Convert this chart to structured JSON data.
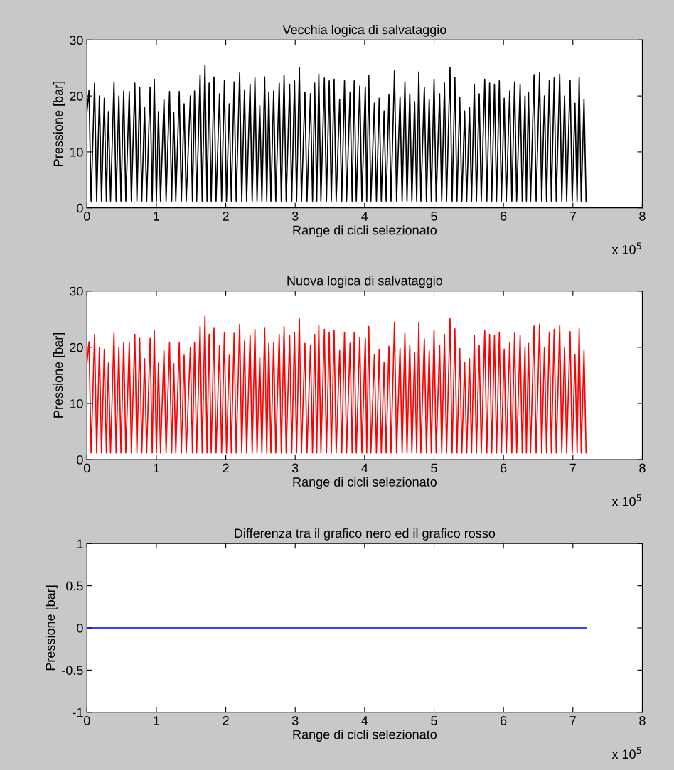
{
  "chart_data": [
    {
      "type": "line",
      "title": "Vecchia logica di salvataggio",
      "xlabel": "Range di cicli selezionato",
      "ylabel": "Pressione [bar]",
      "xlim": [
        0,
        8
      ],
      "xticks": [
        0,
        1,
        2,
        3,
        4,
        5,
        6,
        7,
        8
      ],
      "ylim": [
        0,
        30
      ],
      "yticks": [
        0,
        10,
        20,
        30
      ],
      "annotations": [
        "x 10$^{5}$"
      ],
      "line_style": "solid",
      "marker": "none",
      "series": [
        {
          "color": "#000000",
          "x": [
            0,
            0.03,
            0.06,
            0.11,
            0.14,
            0.18,
            0.21,
            0.25,
            0.28,
            0.31,
            0.34,
            0.39,
            0.42,
            0.46,
            0.49,
            0.53,
            0.56,
            0.61,
            0.64,
            0.69,
            0.72,
            0.76,
            0.79,
            0.83,
            0.86,
            0.91,
            0.94,
            0.97,
            1.0,
            1.03,
            1.06,
            1.11,
            1.14,
            1.19,
            1.22,
            1.25,
            1.28,
            1.33,
            1.36,
            1.4,
            1.43,
            1.49,
            1.52,
            1.55,
            1.58,
            1.63,
            1.66,
            1.7,
            1.73,
            1.76,
            1.79,
            1.83,
            1.86,
            1.91,
            1.94,
            1.98,
            2.01,
            2.05,
            2.08,
            2.12,
            2.15,
            2.2,
            2.23,
            2.27,
            2.3,
            2.35,
            2.38,
            2.42,
            2.45,
            2.49,
            2.52,
            2.56,
            2.59,
            2.62,
            2.65,
            2.69,
            2.72,
            2.77,
            2.8,
            2.84,
            2.87,
            2.92,
            2.95,
            2.99,
            3.02,
            3.06,
            3.09,
            3.14,
            3.17,
            3.22,
            3.25,
            3.28,
            3.31,
            3.34,
            3.37,
            3.42,
            3.45,
            3.49,
            3.52,
            3.56,
            3.59,
            3.64,
            3.67,
            3.71,
            3.74,
            3.79,
            3.82,
            3.85,
            3.88,
            3.93,
            3.96,
            4.01,
            4.03,
            4.06,
            4.09,
            4.14,
            4.17,
            4.21,
            4.24,
            4.28,
            4.31,
            4.35,
            4.38,
            4.43,
            4.46,
            4.51,
            4.54,
            4.58,
            4.61,
            4.65,
            4.68,
            4.72,
            4.75,
            4.78,
            4.81,
            4.86,
            4.89,
            4.93,
            4.96,
            5.0,
            5.03,
            5.08,
            5.11,
            5.15,
            5.18,
            5.23,
            5.26,
            5.3,
            5.33,
            5.37,
            5.4,
            5.44,
            5.47,
            5.51,
            5.54,
            5.58,
            5.61,
            5.65,
            5.68,
            5.73,
            5.76,
            5.8,
            5.83,
            5.87,
            5.9,
            5.94,
            5.97,
            6.01,
            6.04,
            6.09,
            6.12,
            6.16,
            6.19,
            6.24,
            6.27,
            6.31,
            6.33,
            6.36,
            6.39,
            6.44,
            6.47,
            6.52,
            6.55,
            6.59,
            6.62,
            6.66,
            6.69,
            6.73,
            6.76,
            6.81,
            6.84,
            6.88,
            6.91,
            6.96,
            6.99,
            7.03,
            7.06,
            7.09,
            7.12,
            7.16,
            7.19
          ],
          "values": [
            17.2,
            21.0,
            1.2,
            22.3,
            1.2,
            20.0,
            1.2,
            19.6,
            1.2,
            17.2,
            1.2,
            22.5,
            1.2,
            20.0,
            1.2,
            20.9,
            1.2,
            20.8,
            1.2,
            22.3,
            1.2,
            21.6,
            1.2,
            18.0,
            1.2,
            21.6,
            1.2,
            23.0,
            1.2,
            17.2,
            1.2,
            19.4,
            1.2,
            20.8,
            1.2,
            17.1,
            1.2,
            20.8,
            1.2,
            18.6,
            1.2,
            20.0,
            1.2,
            20.9,
            1.2,
            23.7,
            1.2,
            25.5,
            1.2,
            22.3,
            1.2,
            23.4,
            1.2,
            20.4,
            1.2,
            22.7,
            1.2,
            18.6,
            1.2,
            22.5,
            1.2,
            24.1,
            1.2,
            21.1,
            1.2,
            22.1,
            1.2,
            23.2,
            1.2,
            18.3,
            1.2,
            23.4,
            1.2,
            20.7,
            1.2,
            20.9,
            1.2,
            22.3,
            1.2,
            23.7,
            1.2,
            22.1,
            1.2,
            22.7,
            1.2,
            25.1,
            1.2,
            20.7,
            1.2,
            20.4,
            1.2,
            22.3,
            1.2,
            23.9,
            1.2,
            23.2,
            1.2,
            22.7,
            1.2,
            23.0,
            1.2,
            19.4,
            1.2,
            22.7,
            1.2,
            20.7,
            1.2,
            22.7,
            1.2,
            21.8,
            1.2,
            21.6,
            1.2,
            23.7,
            1.2,
            18.7,
            1.2,
            19.6,
            1.2,
            17.3,
            1.2,
            20.2,
            1.2,
            24.5,
            1.2,
            19.8,
            1.2,
            22.5,
            1.2,
            20.4,
            1.2,
            19.0,
            1.2,
            24.3,
            1.2,
            21.5,
            1.2,
            19.4,
            1.2,
            23.0,
            1.2,
            20.4,
            1.2,
            22.3,
            1.2,
            25.1,
            1.2,
            23.3,
            1.2,
            19.8,
            1.2,
            17.3,
            1.2,
            18.0,
            1.2,
            22.1,
            1.2,
            20.4,
            1.2,
            23.0,
            1.2,
            22.3,
            1.2,
            22.1,
            1.2,
            22.7,
            1.2,
            19.6,
            1.2,
            20.9,
            1.2,
            22.5,
            1.2,
            22.1,
            1.2,
            20.0,
            1.2,
            20.7,
            1.2,
            23.8,
            1.2,
            24.1,
            1.2,
            20.0,
            1.2,
            22.7,
            1.2,
            23.2,
            1.2,
            23.9,
            1.2,
            20.0,
            1.2,
            22.8,
            1.2,
            18.7,
            1.2,
            23.3,
            1.2,
            19.4,
            1.2
          ]
        }
      ]
    },
    {
      "type": "line",
      "title": "Nuova logica di salvataggio",
      "xlabel": "Range di cicli selezionato",
      "ylabel": "Pressione [bar]",
      "xlim": [
        0,
        8
      ],
      "xticks": [
        0,
        1,
        2,
        3,
        4,
        5,
        6,
        7,
        8
      ],
      "ylim": [
        0,
        30
      ],
      "yticks": [
        0,
        10,
        20,
        30
      ],
      "annotations": [
        "x 10$^{5}$"
      ],
      "line_style": "solid",
      "marker": "none",
      "series": [
        {
          "color": "#ff0000",
          "x": [
            0,
            0.03,
            0.06,
            0.11,
            0.14,
            0.18,
            0.21,
            0.25,
            0.28,
            0.31,
            0.34,
            0.39,
            0.42,
            0.46,
            0.49,
            0.53,
            0.56,
            0.61,
            0.64,
            0.69,
            0.72,
            0.76,
            0.79,
            0.83,
            0.86,
            0.91,
            0.94,
            0.97,
            1.0,
            1.03,
            1.06,
            1.11,
            1.14,
            1.19,
            1.22,
            1.25,
            1.28,
            1.33,
            1.36,
            1.4,
            1.43,
            1.49,
            1.52,
            1.55,
            1.58,
            1.63,
            1.66,
            1.7,
            1.73,
            1.76,
            1.79,
            1.83,
            1.86,
            1.91,
            1.94,
            1.98,
            2.01,
            2.05,
            2.08,
            2.12,
            2.15,
            2.2,
            2.23,
            2.27,
            2.3,
            2.35,
            2.38,
            2.42,
            2.45,
            2.49,
            2.52,
            2.56,
            2.59,
            2.62,
            2.65,
            2.69,
            2.72,
            2.77,
            2.8,
            2.84,
            2.87,
            2.92,
            2.95,
            2.99,
            3.02,
            3.06,
            3.09,
            3.14,
            3.17,
            3.22,
            3.25,
            3.28,
            3.31,
            3.34,
            3.37,
            3.42,
            3.45,
            3.49,
            3.52,
            3.56,
            3.59,
            3.64,
            3.67,
            3.71,
            3.74,
            3.79,
            3.82,
            3.85,
            3.88,
            3.93,
            3.96,
            4.01,
            4.03,
            4.06,
            4.09,
            4.14,
            4.17,
            4.21,
            4.24,
            4.28,
            4.31,
            4.35,
            4.38,
            4.43,
            4.46,
            4.51,
            4.54,
            4.58,
            4.61,
            4.65,
            4.68,
            4.72,
            4.75,
            4.78,
            4.81,
            4.86,
            4.89,
            4.93,
            4.96,
            5.0,
            5.03,
            5.08,
            5.11,
            5.15,
            5.18,
            5.23,
            5.26,
            5.3,
            5.33,
            5.37,
            5.4,
            5.44,
            5.47,
            5.51,
            5.54,
            5.58,
            5.61,
            5.65,
            5.68,
            5.73,
            5.76,
            5.8,
            5.83,
            5.87,
            5.9,
            5.94,
            5.97,
            6.01,
            6.04,
            6.09,
            6.12,
            6.16,
            6.19,
            6.24,
            6.27,
            6.31,
            6.33,
            6.36,
            6.39,
            6.44,
            6.47,
            6.52,
            6.55,
            6.59,
            6.62,
            6.66,
            6.69,
            6.73,
            6.76,
            6.81,
            6.84,
            6.88,
            6.91,
            6.96,
            6.99,
            7.03,
            7.06,
            7.09,
            7.12,
            7.16,
            7.19
          ],
          "values": [
            17.2,
            21.0,
            1.2,
            22.3,
            1.2,
            20.0,
            1.2,
            19.6,
            1.2,
            17.2,
            1.2,
            22.5,
            1.2,
            20.0,
            1.2,
            20.9,
            1.2,
            20.8,
            1.2,
            22.3,
            1.2,
            21.6,
            1.2,
            18.0,
            1.2,
            21.6,
            1.2,
            23.0,
            1.2,
            17.2,
            1.2,
            19.4,
            1.2,
            20.8,
            1.2,
            17.1,
            1.2,
            20.8,
            1.2,
            18.6,
            1.2,
            20.0,
            1.2,
            20.9,
            1.2,
            23.7,
            1.2,
            25.5,
            1.2,
            22.3,
            1.2,
            23.4,
            1.2,
            20.4,
            1.2,
            22.7,
            1.2,
            18.6,
            1.2,
            22.5,
            1.2,
            24.1,
            1.2,
            21.1,
            1.2,
            22.1,
            1.2,
            23.2,
            1.2,
            18.3,
            1.2,
            23.4,
            1.2,
            20.7,
            1.2,
            20.9,
            1.2,
            22.3,
            1.2,
            23.7,
            1.2,
            22.1,
            1.2,
            22.7,
            1.2,
            25.1,
            1.2,
            20.7,
            1.2,
            20.4,
            1.2,
            22.3,
            1.2,
            23.9,
            1.2,
            23.2,
            1.2,
            22.7,
            1.2,
            23.0,
            1.2,
            19.4,
            1.2,
            22.7,
            1.2,
            20.7,
            1.2,
            22.7,
            1.2,
            21.8,
            1.2,
            21.6,
            1.2,
            23.7,
            1.2,
            18.7,
            1.2,
            19.6,
            1.2,
            17.3,
            1.2,
            20.2,
            1.2,
            24.5,
            1.2,
            19.8,
            1.2,
            22.5,
            1.2,
            20.4,
            1.2,
            19.0,
            1.2,
            24.3,
            1.2,
            21.5,
            1.2,
            19.4,
            1.2,
            23.0,
            1.2,
            20.4,
            1.2,
            22.3,
            1.2,
            25.1,
            1.2,
            23.3,
            1.2,
            19.8,
            1.2,
            17.3,
            1.2,
            18.0,
            1.2,
            22.1,
            1.2,
            20.4,
            1.2,
            23.0,
            1.2,
            22.3,
            1.2,
            22.1,
            1.2,
            22.7,
            1.2,
            19.6,
            1.2,
            20.9,
            1.2,
            22.5,
            1.2,
            22.1,
            1.2,
            20.0,
            1.2,
            20.7,
            1.2,
            23.8,
            1.2,
            24.1,
            1.2,
            20.0,
            1.2,
            22.7,
            1.2,
            23.2,
            1.2,
            23.9,
            1.2,
            20.0,
            1.2,
            22.8,
            1.2,
            18.7,
            1.2,
            23.3,
            1.2,
            19.4,
            1.2
          ]
        }
      ]
    },
    {
      "type": "line",
      "title": "Differenza tra il grafico nero ed il grafico rosso",
      "xlabel": "Range di cicli selezionato",
      "ylabel": "Pressione [bar]",
      "xlim": [
        0,
        8
      ],
      "xticks": [
        0,
        1,
        2,
        3,
        4,
        5,
        6,
        7,
        8
      ],
      "ylim": [
        -1,
        1
      ],
      "yticks": [
        -1,
        -0.5,
        0,
        0.5,
        1
      ],
      "annotations": [
        "x 10$^{5}$"
      ],
      "line_style": "solid",
      "marker": "none",
      "series": [
        {
          "color": "#0000ff",
          "x": [
            0,
            7.19
          ],
          "values": [
            0,
            0
          ]
        }
      ]
    }
  ]
}
